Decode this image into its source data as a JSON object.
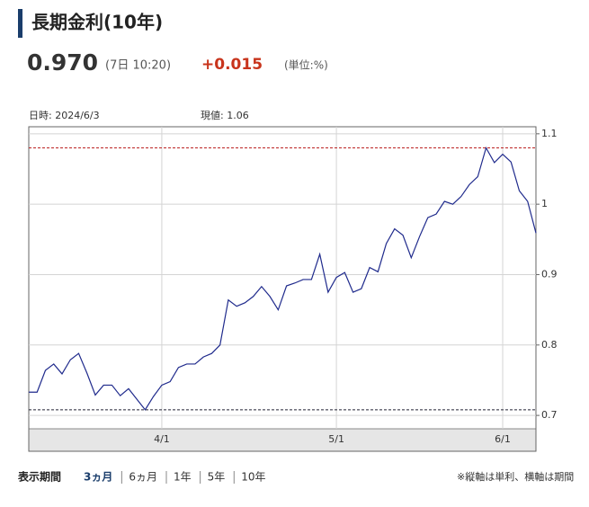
{
  "header": {
    "title": "長期金利(10年)",
    "price": "0.970",
    "time": "(7日 10:20)",
    "change": "+0.015",
    "unit": "(単位:%)"
  },
  "chart_data": {
    "type": "line",
    "annotations": [
      "日時: 2024/6/3",
      "現値: 1.06"
    ],
    "categories": [
      null,
      null,
      null,
      null,
      null,
      null,
      null,
      null,
      null,
      null,
      null,
      null,
      null,
      null,
      null,
      null,
      "4/1",
      null,
      null,
      null,
      null,
      null,
      null,
      null,
      null,
      null,
      null,
      null,
      null,
      null,
      null,
      null,
      null,
      null,
      null,
      null,
      null,
      "5/1",
      null,
      null,
      null,
      null,
      null,
      null,
      null,
      null,
      null,
      null,
      null,
      null,
      null,
      null,
      null,
      null,
      null,
      null,
      null,
      "6/1",
      null,
      null,
      null,
      null
    ],
    "series": [
      {
        "color": "#1f2a8c",
        "values": [
          0.733,
          0.733,
          0.764,
          0.773,
          0.759,
          0.779,
          0.788,
          0.76,
          0.729,
          0.743,
          0.743,
          0.728,
          0.738,
          0.723,
          0.708,
          0.727,
          0.743,
          0.748,
          0.768,
          0.773,
          0.773,
          0.783,
          0.788,
          0.8,
          0.864,
          0.855,
          0.86,
          0.869,
          0.883,
          0.869,
          0.85,
          0.884,
          0.888,
          0.893,
          0.893,
          0.929,
          0.875,
          0.896,
          0.903,
          0.875,
          0.88,
          0.91,
          0.904,
          0.944,
          0.965,
          0.956,
          0.924,
          0.954,
          0.981,
          0.986,
          1.004,
          1.0,
          1.011,
          1.028,
          1.039,
          1.08,
          1.059,
          1.071,
          1.06,
          1.019,
          1.004,
          0.959
        ]
      }
    ],
    "ylim": [
      0.681,
      1.11
    ],
    "yticks": [
      0.7,
      0.8,
      0.9,
      1,
      1.1
    ],
    "grid": true
  },
  "periods": {
    "label": "表示期間",
    "options": [
      "3ヵ月",
      "6ヵ月",
      "1年",
      "5年",
      "10年"
    ],
    "selected": 0
  },
  "note": "※縦軸は単利、横軸は期間"
}
